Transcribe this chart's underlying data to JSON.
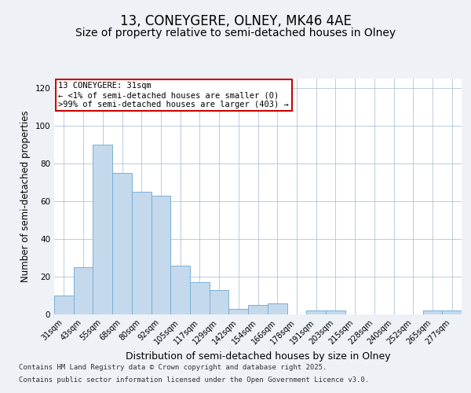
{
  "title_line1": "13, CONEYGERE, OLNEY, MK46 4AE",
  "title_line2": "Size of property relative to semi-detached houses in Olney",
  "xlabel": "Distribution of semi-detached houses by size in Olney",
  "ylabel": "Number of semi-detached properties",
  "categories": [
    "31sqm",
    "43sqm",
    "55sqm",
    "68sqm",
    "80sqm",
    "92sqm",
    "105sqm",
    "117sqm",
    "129sqm",
    "142sqm",
    "154sqm",
    "166sqm",
    "178sqm",
    "191sqm",
    "203sqm",
    "215sqm",
    "228sqm",
    "240sqm",
    "252sqm",
    "265sqm",
    "277sqm"
  ],
  "values": [
    10,
    25,
    90,
    75,
    65,
    63,
    26,
    17,
    13,
    3,
    5,
    6,
    0,
    2,
    2,
    0,
    0,
    0,
    0,
    2,
    2
  ],
  "bar_color": "#c5d9ed",
  "bar_edge_color": "#7aafd4",
  "annotation_title": "13 CONEYGERE: 31sqm",
  "annotation_line2": "← <1% of semi-detached houses are smaller (0)",
  "annotation_line3": ">99% of semi-detached houses are larger (403) →",
  "annotation_box_color": "#ffffff",
  "annotation_box_edge": "#cc0000",
  "ylim": [
    0,
    125
  ],
  "yticks": [
    0,
    20,
    40,
    60,
    80,
    100,
    120
  ],
  "footer_line1": "Contains HM Land Registry data © Crown copyright and database right 2025.",
  "footer_line2": "Contains public sector information licensed under the Open Government Licence v3.0.",
  "bg_color": "#eef2f7",
  "plot_bg_color": "#ffffff",
  "grid_color": "#b0c4d8",
  "title_fontsize": 12,
  "subtitle_fontsize": 10,
  "ylabel_fontsize": 8.5,
  "xlabel_fontsize": 9,
  "tick_fontsize": 7,
  "annotation_fontsize": 7.5,
  "footer_fontsize": 6.5
}
